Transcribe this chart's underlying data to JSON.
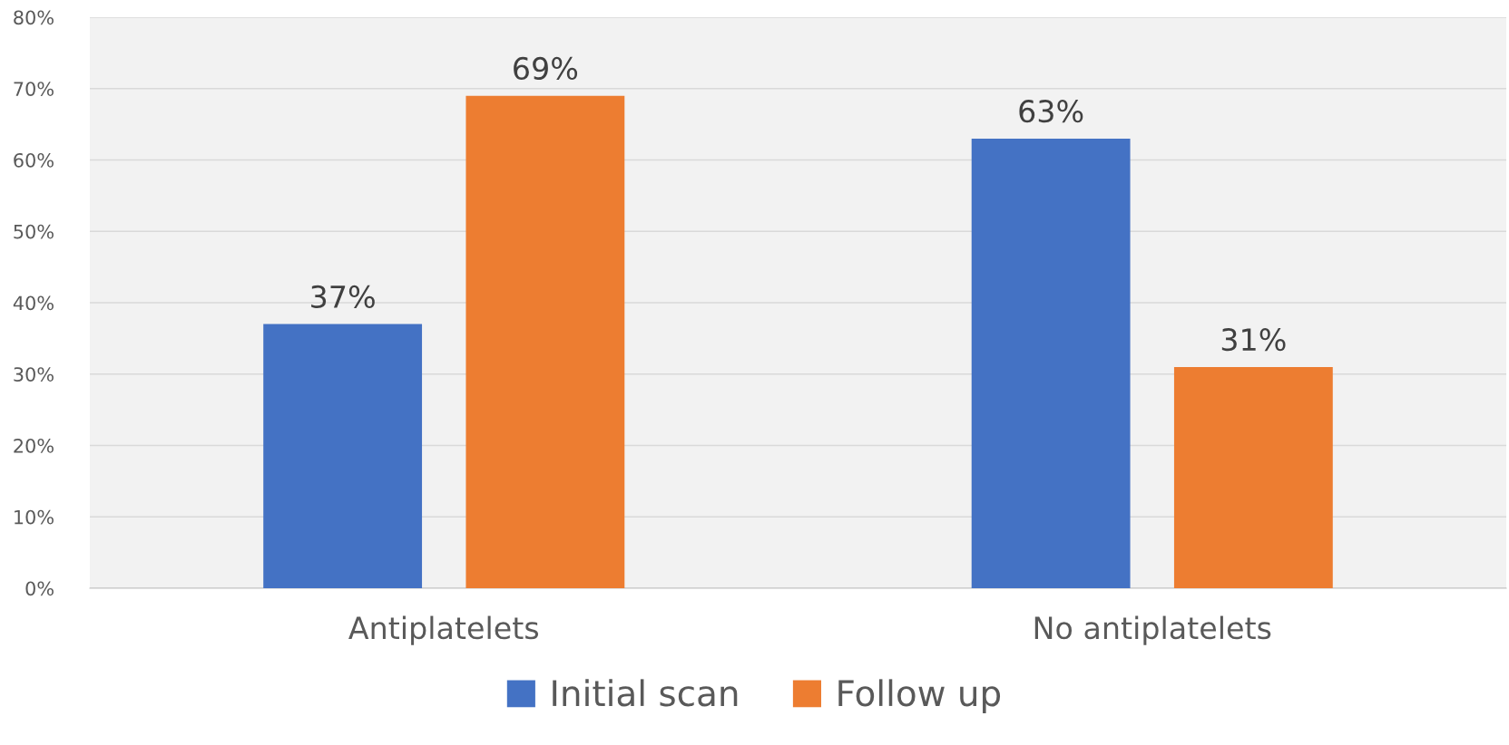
{
  "chart_data": {
    "type": "bar",
    "categories": [
      "Antiplatelets",
      "No antiplatelets"
    ],
    "series": [
      {
        "name": "Initial scan",
        "color": "#4472c4",
        "values": [
          37,
          63
        ],
        "value_labels": [
          "37%",
          "63%"
        ]
      },
      {
        "name": "Follow up",
        "color": "#ed7d31",
        "values": [
          69,
          31
        ],
        "value_labels": [
          "69%",
          "31%"
        ]
      }
    ],
    "ylim": [
      0,
      80
    ],
    "yticks": [
      {
        "value": 0,
        "label": "0%"
      },
      {
        "value": 10,
        "label": "10%"
      },
      {
        "value": 20,
        "label": "20%"
      },
      {
        "value": 30,
        "label": "30%"
      },
      {
        "value": 40,
        "label": "40%"
      },
      {
        "value": 50,
        "label": "50%"
      },
      {
        "value": 60,
        "label": "60%"
      },
      {
        "value": 70,
        "label": "70%"
      },
      {
        "value": 80,
        "label": "80%"
      }
    ],
    "grid": "y",
    "legend": "bottom"
  }
}
